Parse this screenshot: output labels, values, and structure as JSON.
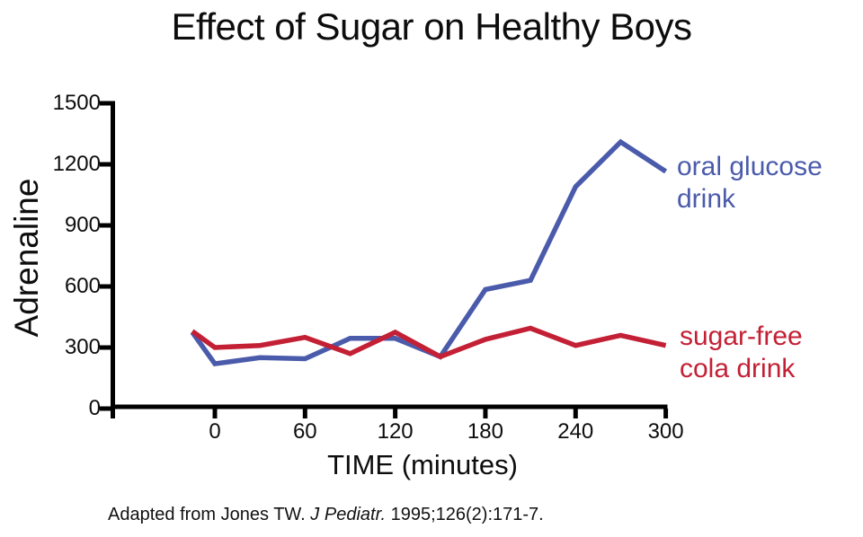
{
  "title": "Effect of Sugar on Healthy Boys",
  "caption": {
    "prefix": "Adapted from Jones TW. ",
    "journal": "J Pediatr.",
    "suffix": " 1995;126(2):171-7."
  },
  "labels": {
    "glucose_line1": "oral glucose",
    "glucose_line2": "drink",
    "cola_line1": "sugar-free",
    "cola_line2": "cola drink"
  },
  "colors": {
    "glucose": "#4B5BAB",
    "cola": "#C32035",
    "axis": "#000000"
  },
  "chart_data": {
    "type": "line",
    "title": "Effect of Sugar on Healthy Boys",
    "xlabel": "TIME (minutes)",
    "ylabel": "Adrenaline",
    "x": [
      -15,
      0,
      30,
      60,
      90,
      120,
      150,
      180,
      210,
      240,
      270,
      300
    ],
    "series": [
      {
        "name": "oral glucose drink",
        "color": "#4B5BAB",
        "values": [
          375,
          220,
          250,
          245,
          345,
          345,
          255,
          585,
          630,
          1090,
          1310,
          1165
        ]
      },
      {
        "name": "sugar-free cola drink",
        "color": "#C32035",
        "values": [
          380,
          300,
          310,
          350,
          270,
          375,
          255,
          340,
          395,
          310,
          360,
          310
        ]
      }
    ],
    "x_ticks": [
      0,
      60,
      120,
      180,
      240,
      300
    ],
    "y_ticks": [
      0,
      300,
      600,
      900,
      1200,
      1500
    ],
    "xlim": [
      -68,
      300
    ],
    "ylim": [
      0,
      1500
    ],
    "grid": false,
    "legend_position": "inline-right-annotations"
  }
}
